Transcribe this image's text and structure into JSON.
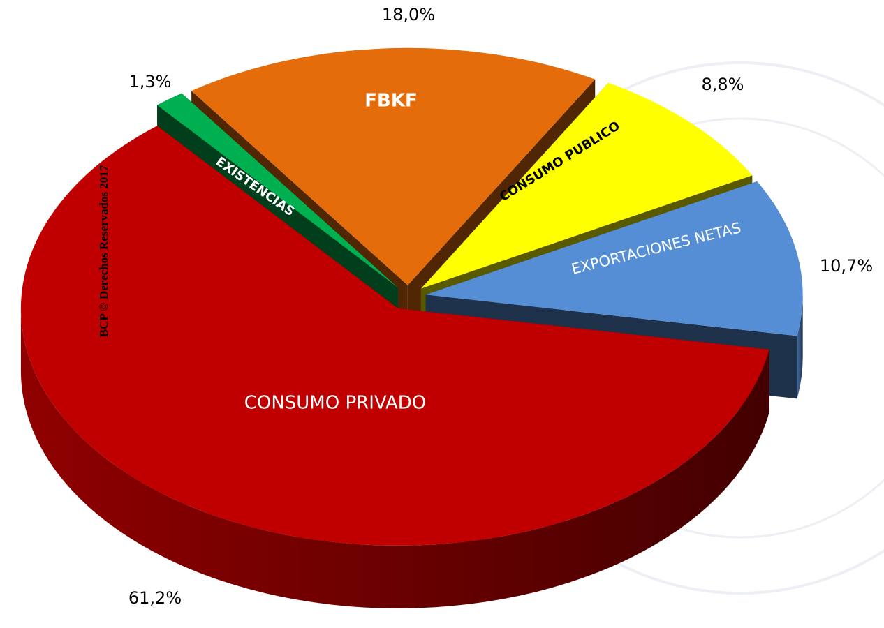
{
  "chart_data": {
    "type": "pie",
    "categories": [
      "CONSUMO PRIVADO",
      "EXISTENCIAS",
      "FBKF",
      "CONSUMO PUBLICO",
      "EXPORTACIONES NETAS"
    ],
    "values": [
      61.2,
      1.3,
      18.0,
      8.8,
      10.7
    ],
    "value_labels": [
      "61,2%",
      "1,3%",
      "18,0%",
      "8,8%",
      "10,7%"
    ],
    "colors": [
      "#c00000",
      "#00b050",
      "#e46c0a",
      "#ffff00",
      "#558ed5"
    ],
    "watermark": "BCP © Derechos Reservados 2017"
  }
}
